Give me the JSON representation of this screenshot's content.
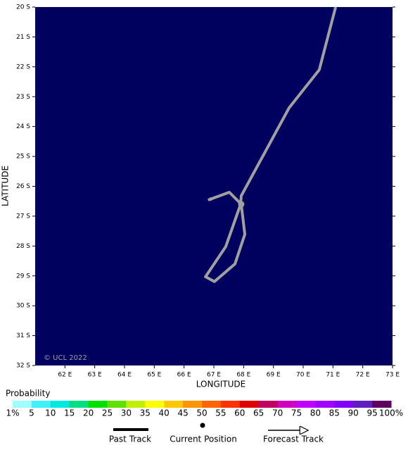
{
  "chart_data": {
    "type": "line",
    "xlabel": "LONGITUDE",
    "ylabel": "LATITUDE",
    "watermark": "© UCL 2022",
    "background": "#00005f",
    "xlim": [
      61,
      73
    ],
    "ylim": [
      32,
      20
    ],
    "xticks": [
      {
        "value": 62,
        "label": "62 E"
      },
      {
        "value": 63,
        "label": "63 E"
      },
      {
        "value": 64,
        "label": "64 E"
      },
      {
        "value": 65,
        "label": "65 E"
      },
      {
        "value": 66,
        "label": "66 E"
      },
      {
        "value": 67,
        "label": "67 E"
      },
      {
        "value": 68,
        "label": "68 E"
      },
      {
        "value": 69,
        "label": "69 E"
      },
      {
        "value": 70,
        "label": "70 E"
      },
      {
        "value": 71,
        "label": "71 E"
      },
      {
        "value": 72,
        "label": "72 E"
      },
      {
        "value": 73,
        "label": "73 E"
      }
    ],
    "yticks": [
      {
        "value": 20,
        "label": "20 S"
      },
      {
        "value": 21,
        "label": "21 S"
      },
      {
        "value": 22,
        "label": "22 S"
      },
      {
        "value": 23,
        "label": "23 S"
      },
      {
        "value": 24,
        "label": "24 S"
      },
      {
        "value": 25,
        "label": "25 S"
      },
      {
        "value": 26,
        "label": "26 S"
      },
      {
        "value": 27,
        "label": "27 S"
      },
      {
        "value": 28,
        "label": "28 S"
      },
      {
        "value": 29,
        "label": "29 S"
      },
      {
        "value": 30,
        "label": "30 S"
      },
      {
        "value": 31,
        "label": "31 S"
      },
      {
        "value": 32,
        "label": "32 S"
      }
    ],
    "series": [
      {
        "name": "Past Track",
        "color": "#a0a0a0",
        "x": [
          71.09,
          70.54,
          69.53,
          67.92,
          67.9,
          67.4,
          66.72,
          67.02,
          67.71,
          68.04,
          67.92
        ],
        "values": [
          20.0,
          22.1,
          23.37,
          26.32,
          26.6,
          28.02,
          29.03,
          29.19,
          28.6,
          27.61,
          26.6
        ]
      },
      {
        "name": "Forecast Track",
        "color": "#a0a0a0",
        "x": [
          67.92,
          67.52,
          66.81
        ],
        "values": [
          26.6,
          26.2,
          26.46
        ]
      }
    ],
    "current_position": {
      "name": "Current Position",
      "color": "#a0a0a0",
      "x": 67.92,
      "value": 26.6
    },
    "probability": {
      "title": "Probability",
      "labels": [
        "1%",
        "5",
        "10",
        "15",
        "20",
        "25",
        "30",
        "35",
        "40",
        "45",
        "50",
        "55",
        "60",
        "65",
        "70",
        "75",
        "80",
        "85",
        "90",
        "95",
        "100%"
      ],
      "colors": [
        "#a0ffff",
        "#40f0ff",
        "#00e8e0",
        "#00e080",
        "#00e000",
        "#60e000",
        "#c0f000",
        "#ffff00",
        "#ffc800",
        "#ff9600",
        "#ff6400",
        "#ff3200",
        "#e00000",
        "#c00060",
        "#d000c0",
        "#c000ff",
        "#a000ff",
        "#8000ff",
        "#6020c0",
        "#600060"
      ]
    }
  }
}
